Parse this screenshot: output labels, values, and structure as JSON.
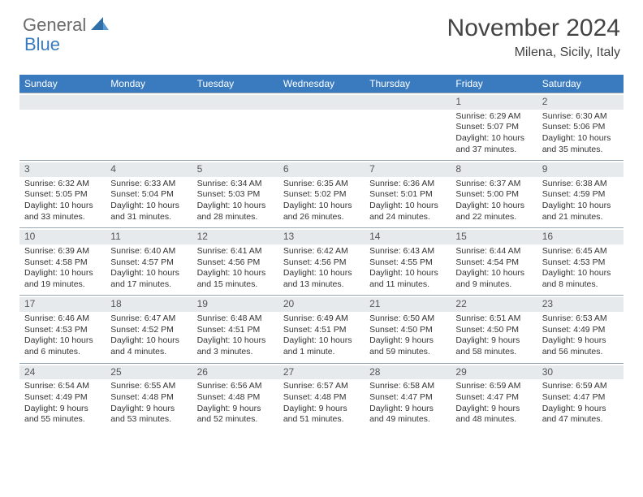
{
  "logo": {
    "text1": "General",
    "text2": "Blue"
  },
  "title": "November 2024",
  "location": "Milena, Sicily, Italy",
  "colors": {
    "header_bg": "#3a7bbf",
    "header_text": "#ffffff",
    "daynum_bg": "#e6eaed",
    "border": "#9aa7b0",
    "body_text": "#333333",
    "logo_gray": "#6b6b6b",
    "logo_blue": "#3a7bbf"
  },
  "typography": {
    "title_fontsize": 30,
    "location_fontsize": 16,
    "dayheader_fontsize": 12,
    "cell_fontsize": 10.5,
    "logo_fontsize": 22
  },
  "day_headers": [
    "Sunday",
    "Monday",
    "Tuesday",
    "Wednesday",
    "Thursday",
    "Friday",
    "Saturday"
  ],
  "weeks": [
    [
      null,
      null,
      null,
      null,
      null,
      {
        "n": "1",
        "sr": "Sunrise: 6:29 AM",
        "ss": "Sunset: 5:07 PM",
        "dl1": "Daylight: 10 hours",
        "dl2": "and 37 minutes."
      },
      {
        "n": "2",
        "sr": "Sunrise: 6:30 AM",
        "ss": "Sunset: 5:06 PM",
        "dl1": "Daylight: 10 hours",
        "dl2": "and 35 minutes."
      }
    ],
    [
      {
        "n": "3",
        "sr": "Sunrise: 6:32 AM",
        "ss": "Sunset: 5:05 PM",
        "dl1": "Daylight: 10 hours",
        "dl2": "and 33 minutes."
      },
      {
        "n": "4",
        "sr": "Sunrise: 6:33 AM",
        "ss": "Sunset: 5:04 PM",
        "dl1": "Daylight: 10 hours",
        "dl2": "and 31 minutes."
      },
      {
        "n": "5",
        "sr": "Sunrise: 6:34 AM",
        "ss": "Sunset: 5:03 PM",
        "dl1": "Daylight: 10 hours",
        "dl2": "and 28 minutes."
      },
      {
        "n": "6",
        "sr": "Sunrise: 6:35 AM",
        "ss": "Sunset: 5:02 PM",
        "dl1": "Daylight: 10 hours",
        "dl2": "and 26 minutes."
      },
      {
        "n": "7",
        "sr": "Sunrise: 6:36 AM",
        "ss": "Sunset: 5:01 PM",
        "dl1": "Daylight: 10 hours",
        "dl2": "and 24 minutes."
      },
      {
        "n": "8",
        "sr": "Sunrise: 6:37 AM",
        "ss": "Sunset: 5:00 PM",
        "dl1": "Daylight: 10 hours",
        "dl2": "and 22 minutes."
      },
      {
        "n": "9",
        "sr": "Sunrise: 6:38 AM",
        "ss": "Sunset: 4:59 PM",
        "dl1": "Daylight: 10 hours",
        "dl2": "and 21 minutes."
      }
    ],
    [
      {
        "n": "10",
        "sr": "Sunrise: 6:39 AM",
        "ss": "Sunset: 4:58 PM",
        "dl1": "Daylight: 10 hours",
        "dl2": "and 19 minutes."
      },
      {
        "n": "11",
        "sr": "Sunrise: 6:40 AM",
        "ss": "Sunset: 4:57 PM",
        "dl1": "Daylight: 10 hours",
        "dl2": "and 17 minutes."
      },
      {
        "n": "12",
        "sr": "Sunrise: 6:41 AM",
        "ss": "Sunset: 4:56 PM",
        "dl1": "Daylight: 10 hours",
        "dl2": "and 15 minutes."
      },
      {
        "n": "13",
        "sr": "Sunrise: 6:42 AM",
        "ss": "Sunset: 4:56 PM",
        "dl1": "Daylight: 10 hours",
        "dl2": "and 13 minutes."
      },
      {
        "n": "14",
        "sr": "Sunrise: 6:43 AM",
        "ss": "Sunset: 4:55 PM",
        "dl1": "Daylight: 10 hours",
        "dl2": "and 11 minutes."
      },
      {
        "n": "15",
        "sr": "Sunrise: 6:44 AM",
        "ss": "Sunset: 4:54 PM",
        "dl1": "Daylight: 10 hours",
        "dl2": "and 9 minutes."
      },
      {
        "n": "16",
        "sr": "Sunrise: 6:45 AM",
        "ss": "Sunset: 4:53 PM",
        "dl1": "Daylight: 10 hours",
        "dl2": "and 8 minutes."
      }
    ],
    [
      {
        "n": "17",
        "sr": "Sunrise: 6:46 AM",
        "ss": "Sunset: 4:53 PM",
        "dl1": "Daylight: 10 hours",
        "dl2": "and 6 minutes."
      },
      {
        "n": "18",
        "sr": "Sunrise: 6:47 AM",
        "ss": "Sunset: 4:52 PM",
        "dl1": "Daylight: 10 hours",
        "dl2": "and 4 minutes."
      },
      {
        "n": "19",
        "sr": "Sunrise: 6:48 AM",
        "ss": "Sunset: 4:51 PM",
        "dl1": "Daylight: 10 hours",
        "dl2": "and 3 minutes."
      },
      {
        "n": "20",
        "sr": "Sunrise: 6:49 AM",
        "ss": "Sunset: 4:51 PM",
        "dl1": "Daylight: 10 hours",
        "dl2": "and 1 minute."
      },
      {
        "n": "21",
        "sr": "Sunrise: 6:50 AM",
        "ss": "Sunset: 4:50 PM",
        "dl1": "Daylight: 9 hours",
        "dl2": "and 59 minutes."
      },
      {
        "n": "22",
        "sr": "Sunrise: 6:51 AM",
        "ss": "Sunset: 4:50 PM",
        "dl1": "Daylight: 9 hours",
        "dl2": "and 58 minutes."
      },
      {
        "n": "23",
        "sr": "Sunrise: 6:53 AM",
        "ss": "Sunset: 4:49 PM",
        "dl1": "Daylight: 9 hours",
        "dl2": "and 56 minutes."
      }
    ],
    [
      {
        "n": "24",
        "sr": "Sunrise: 6:54 AM",
        "ss": "Sunset: 4:49 PM",
        "dl1": "Daylight: 9 hours",
        "dl2": "and 55 minutes."
      },
      {
        "n": "25",
        "sr": "Sunrise: 6:55 AM",
        "ss": "Sunset: 4:48 PM",
        "dl1": "Daylight: 9 hours",
        "dl2": "and 53 minutes."
      },
      {
        "n": "26",
        "sr": "Sunrise: 6:56 AM",
        "ss": "Sunset: 4:48 PM",
        "dl1": "Daylight: 9 hours",
        "dl2": "and 52 minutes."
      },
      {
        "n": "27",
        "sr": "Sunrise: 6:57 AM",
        "ss": "Sunset: 4:48 PM",
        "dl1": "Daylight: 9 hours",
        "dl2": "and 51 minutes."
      },
      {
        "n": "28",
        "sr": "Sunrise: 6:58 AM",
        "ss": "Sunset: 4:47 PM",
        "dl1": "Daylight: 9 hours",
        "dl2": "and 49 minutes."
      },
      {
        "n": "29",
        "sr": "Sunrise: 6:59 AM",
        "ss": "Sunset: 4:47 PM",
        "dl1": "Daylight: 9 hours",
        "dl2": "and 48 minutes."
      },
      {
        "n": "30",
        "sr": "Sunrise: 6:59 AM",
        "ss": "Sunset: 4:47 PM",
        "dl1": "Daylight: 9 hours",
        "dl2": "and 47 minutes."
      }
    ]
  ]
}
